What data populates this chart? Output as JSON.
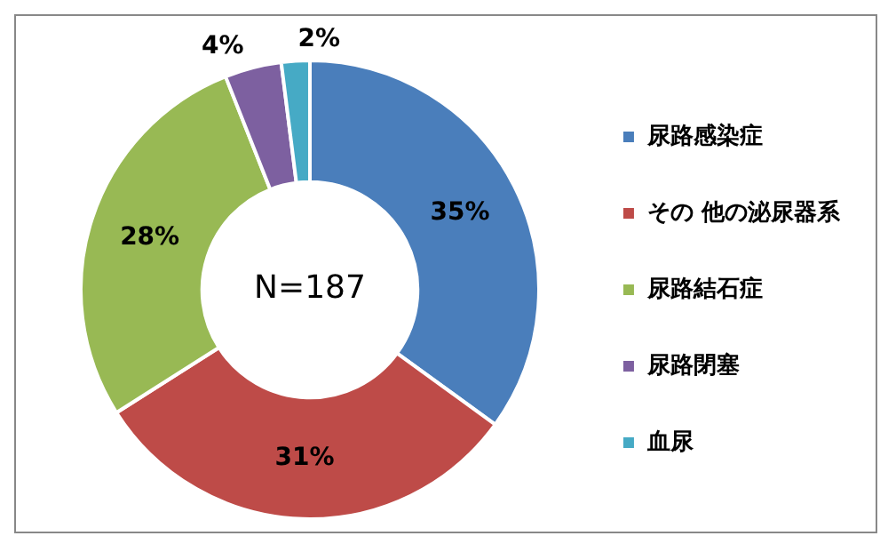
{
  "chart_data": {
    "type": "donut",
    "categories": [
      "尿路感染症",
      "その 他の泌尿器系",
      "尿路結石症",
      "尿路閉塞",
      "血尿"
    ],
    "values": [
      35,
      31,
      28,
      4,
      2
    ],
    "value_labels": [
      "35%",
      "31%",
      "28%",
      "4%",
      "2%"
    ],
    "colors": [
      "#4a7ebb",
      "#be4b48",
      "#98b954",
      "#7d60a0",
      "#46aac5"
    ],
    "annotations": [
      "N=187"
    ],
    "legend": "right"
  }
}
